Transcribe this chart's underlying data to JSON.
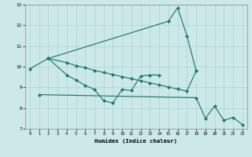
{
  "xlabel": "Humidex (Indice chaleur)",
  "xlim": [
    -0.5,
    23.5
  ],
  "ylim": [
    7,
    13
  ],
  "yticks": [
    7,
    8,
    9,
    10,
    11,
    12,
    13
  ],
  "xticks": [
    0,
    1,
    2,
    3,
    4,
    5,
    6,
    7,
    8,
    9,
    10,
    11,
    12,
    13,
    14,
    15,
    16,
    17,
    18,
    19,
    20,
    21,
    22,
    23
  ],
  "line_color": "#1a7a6e",
  "bg_color": "#cce8e8",
  "grid_color": "#aad4d4",
  "series": [
    {
      "name": "spike_line",
      "x": [
        0,
        2,
        15,
        16,
        17,
        18
      ],
      "y": [
        9.9,
        10.4,
        12.2,
        12.85,
        11.5,
        9.8
      ]
    },
    {
      "name": "wavy_line",
      "x": [
        2,
        4,
        5,
        6,
        7,
        8,
        9,
        10,
        11,
        12,
        13,
        14
      ],
      "y": [
        10.4,
        9.6,
        9.35,
        9.1,
        8.9,
        8.35,
        8.25,
        8.9,
        8.85,
        9.55,
        9.6,
        9.6
      ]
    },
    {
      "name": "upper_trend",
      "x": [
        2,
        4,
        5,
        6,
        7,
        8,
        9,
        10,
        11,
        12,
        13,
        14,
        15,
        16,
        17,
        18
      ],
      "y": [
        10.4,
        10.2,
        10.05,
        9.95,
        9.82,
        9.72,
        9.62,
        9.52,
        9.42,
        9.32,
        9.22,
        9.12,
        9.02,
        8.92,
        8.82,
        9.8
      ]
    },
    {
      "name": "lower_trend",
      "x": [
        1,
        18,
        19,
        20,
        21,
        22,
        23
      ],
      "y": [
        8.65,
        8.5,
        7.5,
        8.1,
        7.4,
        7.55,
        7.2
      ]
    }
  ]
}
